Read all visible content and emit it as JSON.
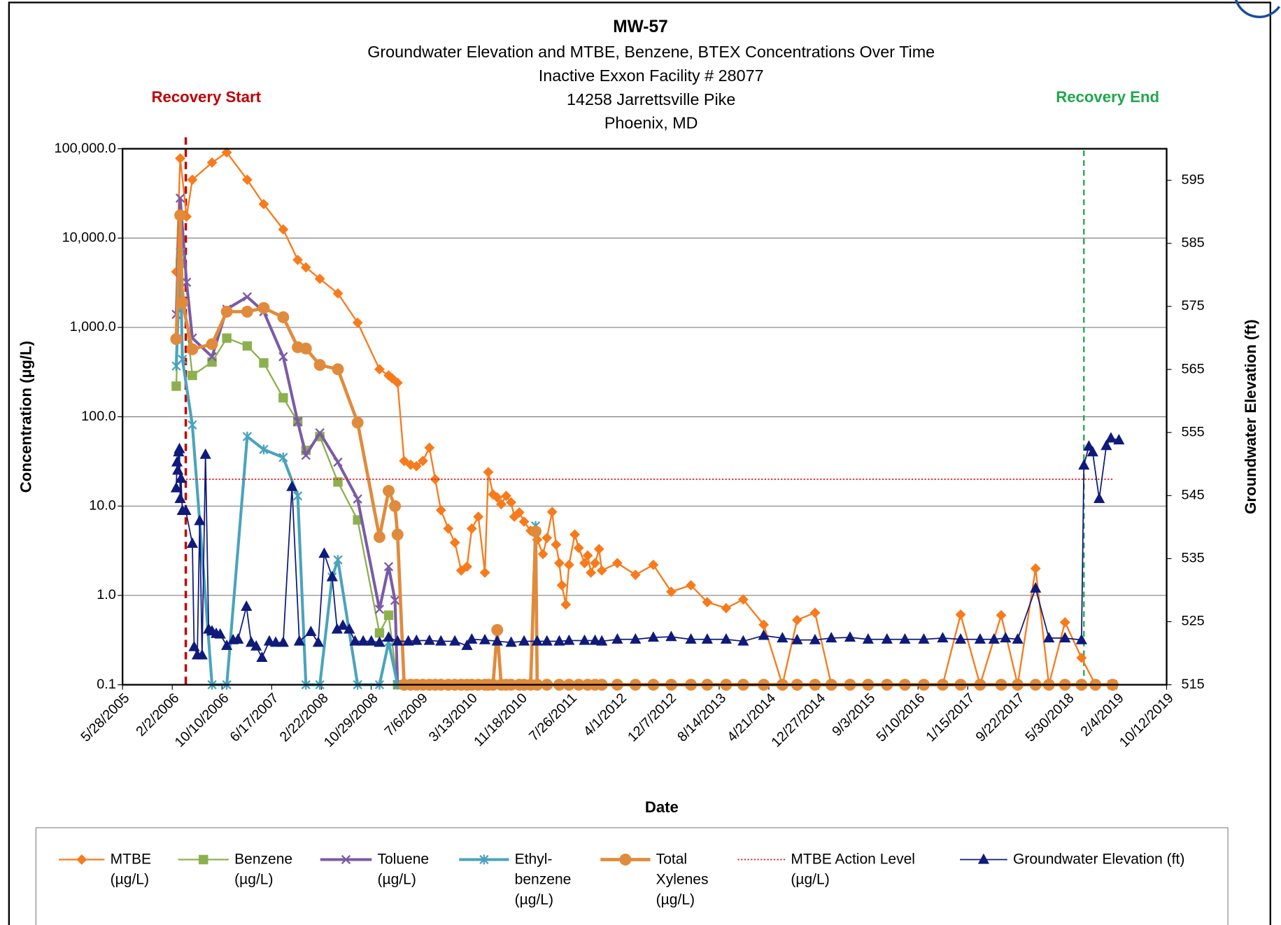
{
  "chart_data": {
    "type": "line",
    "title": "MW-57",
    "subtitle": [
      "Groundwater Elevation and MTBE, Benzene, BTEX Concentrations Over Time",
      "Inactive Exxon Facility # 28077",
      "14258 Jarrettsville Pike",
      "Phoenix, MD"
    ],
    "x_label": "Date",
    "y_label": "Concentration (µg/L)",
    "y2_label": "Groundwater Elevation (ft)",
    "xlim": [
      "5/28/2005",
      "10/12/2019"
    ],
    "xticks": [
      "5/28/2005",
      "2/2/2006",
      "10/10/2006",
      "6/17/2007",
      "2/22/2008",
      "10/29/2008",
      "7/6/2009",
      "3/13/2010",
      "11/18/2010",
      "7/26/2011",
      "4/1/2012",
      "12/7/2012",
      "8/14/2013",
      "4/21/2014",
      "12/27/2014",
      "9/3/2015",
      "5/10/2016",
      "1/15/2017",
      "9/22/2017",
      "5/30/2018",
      "2/4/2019",
      "10/12/2019"
    ],
    "ylim": [
      0.1,
      100000
    ],
    "log_y": true,
    "yticks": [
      0.1,
      {
        "value": 1,
        "label": "1.0"
      },
      {
        "value": 10,
        "label": "10.0"
      },
      {
        "value": 100,
        "label": "100.0"
      },
      {
        "value": 1000,
        "label": "1,000.0"
      },
      {
        "value": 10000,
        "label": "10,000.0"
      },
      {
        "value": 100000,
        "label": "100,000.0"
      }
    ],
    "y2lim": [
      515,
      600
    ],
    "y2ticks": [
      515,
      525,
      535,
      545,
      555,
      565,
      575,
      585,
      595
    ],
    "grid": true,
    "annotations": [
      {
        "text": "Recovery Start",
        "x": "4/11/2006",
        "color": "#c00000"
      },
      {
        "text": "Recovery End",
        "x": "8/22/2018",
        "color": "#1fa84b"
      }
    ],
    "series": [
      {
        "name": "MTBE (µg/L)",
        "color": "#f77b1c",
        "marker": "diamond",
        "width": 2,
        "x": [
          "2/22/2006",
          "3/14/2006",
          "4/15/2006",
          "5/14/2006",
          "8/21/2006",
          "11/3/2006",
          "2/14/2007",
          "5/8/2007",
          "8/14/2007",
          "10/26/2007",
          "12/6/2007",
          "2/14/2008",
          "5/15/2008",
          "8/22/2008",
          "12/10/2008",
          "1/25/2009",
          "2/11/2009",
          "3/11/2009",
          "4/13/2009",
          "5/16/2009",
          "6/14/2009",
          "7/16/2009",
          "8/18/2009",
          "9/16/2009",
          "10/15/2009",
          "11/21/2009",
          "12/24/2009",
          "1/25/2010",
          "2/23/2010",
          "3/19/2010",
          "4/21/2010",
          "5/24/2010",
          "6/10/2010",
          "7/4/2010",
          "7/25/2010",
          "8/14/2010",
          "9/8/2010",
          "10/3/2010",
          "10/19/2010",
          "11/13/2010",
          "12/7/2010",
          "1/9/2011",
          "2/11/2011",
          "3/12/2011",
          "4/1/2011",
          "4/27/2011",
          "5/17/2011",
          "6/2/2011",
          "6/15/2011",
          "7/5/2011",
          "7/21/2011",
          "8/19/2011",
          "9/8/2011",
          "10/7/2011",
          "10/23/2011",
          "11/8/2011",
          "11/29/2011",
          "12/19/2011",
          "1/2/2012",
          "3/20/2012",
          "6/19/2012",
          "9/17/2012",
          "12/16/2012",
          "3/25/2013",
          "6/15/2013",
          "9/18/2013",
          "12/13/2013",
          "3/26/2014",
          "6/28/2014",
          "9/10/2014",
          "12/9/2014",
          "3/1/2015",
          "6/3/2015",
          "9/2/2015",
          "12/6/2015",
          "3/5/2016",
          "6/8/2016",
          "9/11/2016",
          "12/10/2016",
          "3/18/2017",
          "7/2/2017",
          "9/23/2017",
          "12/22/2017",
          "2/27/2018",
          "5/19/2018",
          "8/10/2018",
          "10/19/2018",
          "1/13/2019"
        ],
        "values": [
          4200,
          78000,
          17400,
          45000,
          70000,
          91000,
          45000,
          24000,
          12500,
          5700,
          4700,
          3500,
          2400,
          1130,
          340,
          290,
          270,
          240,
          32,
          29,
          28,
          32,
          45,
          20,
          9,
          5.6,
          3.9,
          1.9,
          2.1,
          5.6,
          7.6,
          1.8,
          24,
          13.5,
          12.5,
          10.5,
          13,
          11,
          7.6,
          8.5,
          6.7,
          5.3,
          4.2,
          2.9,
          4.4,
          8.6,
          3.7,
          2.3,
          1.3,
          0.79,
          2.2,
          4.8,
          3.4,
          2.3,
          2.8,
          1.8,
          2.3,
          3.3,
          1.9,
          2.3,
          1.7,
          2.2,
          1.1,
          1.3,
          0.84,
          0.72,
          0.9,
          0.47,
          0.1,
          0.53,
          0.64,
          0.1,
          0.1,
          0.1,
          0.1,
          0.1,
          0.1,
          0.1,
          0.61,
          0.1,
          0.6,
          0.1,
          2.0,
          0.1,
          0.5,
          0.2,
          0.1,
          0.1
        ]
      },
      {
        "name": "Benzene (µg/L)",
        "color": "#8db04e",
        "marker": "square",
        "width": 2,
        "x": [
          "2/22/2006",
          "3/14/2006",
          "5/14/2006",
          "8/21/2006",
          "11/3/2006",
          "2/14/2007",
          "5/8/2007",
          "8/14/2007",
          "10/26/2007",
          "12/6/2007",
          "2/14/2008",
          "5/15/2008",
          "8/22/2008",
          "12/10/2008",
          "1/25/2009",
          "3/11/2009",
          "6/14/2009",
          "1/13/2019"
        ],
        "values": [
          220,
          5200,
          290,
          410,
          760,
          620,
          400,
          163,
          88,
          42,
          60,
          18.6,
          7,
          0.38,
          0.6,
          0.1,
          0.1,
          0.1
        ]
      },
      {
        "name": "Toluene (µg/L)",
        "color": "#7a5ba6",
        "marker": "x",
        "width": 3.5,
        "x": [
          "2/22/2006",
          "3/14/2006",
          "4/15/2006",
          "5/14/2006",
          "8/21/2006",
          "11/3/2006",
          "2/14/2007",
          "5/8/2007",
          "8/14/2007",
          "10/26/2007",
          "12/6/2007",
          "2/14/2008",
          "5/15/2008",
          "8/22/2008",
          "12/10/2008",
          "1/25/2009",
          "2/26/2009",
          "3/11/2009",
          "6/14/2009",
          "1/13/2019"
        ],
        "values": [
          1400,
          28000,
          3200,
          760,
          470,
          1600,
          2200,
          1500,
          470,
          88,
          37,
          66,
          31,
          12,
          0.7,
          2.1,
          0.88,
          0.1,
          0.1,
          0.1
        ]
      },
      {
        "name": "Ethyl-benzene (µg/L)",
        "color": "#4aa3bd",
        "marker": "asterisk",
        "width": 3.5,
        "x": [
          "2/22/2006",
          "3/14/2006",
          "3/25/2006",
          "5/14/2006",
          "8/21/2006",
          "11/3/2006",
          "2/14/2007",
          "5/8/2007",
          "8/14/2007",
          "10/26/2007",
          "12/6/2007",
          "2/14/2008",
          "4/16/2008",
          "5/15/2008",
          "8/22/2008",
          "12/10/2008",
          "1/25/2009",
          "3/11/2009",
          "6/14/2009",
          "1/9/2011",
          "2/3/2011",
          "2/11/2011",
          "1/13/2019"
        ],
        "values": [
          370,
          6900,
          440,
          81,
          0.1,
          0.1,
          60,
          43,
          35,
          13,
          0.1,
          0.1,
          1.6,
          2.5,
          0.1,
          0.1,
          0.3,
          0.1,
          0.1,
          0.1,
          6,
          0.1,
          0.1
        ]
      },
      {
        "name": "Total Xylenes (µg/L)",
        "color": "#e08b3c",
        "marker": "circle",
        "width": 4,
        "x": [
          "2/22/2006",
          "3/14/2006",
          "3/25/2006",
          "5/14/2006",
          "8/21/2006",
          "11/3/2006",
          "2/14/2007",
          "5/8/2007",
          "8/14/2007",
          "10/26/2007",
          "12/6/2007",
          "2/14/2008",
          "5/15/2008",
          "8/22/2008",
          "12/10/2008",
          "1/25/2009",
          "2/26/2009",
          "3/11/2009",
          "4/13/2009",
          "5/16/2009",
          "6/14/2009",
          "7/16/2009",
          "8/18/2009",
          "9/16/2009",
          "10/15/2009",
          "11/21/2009",
          "12/24/2009",
          "1/25/2010",
          "2/23/2010",
          "3/19/2010",
          "4/21/2010",
          "5/24/2010",
          "6/10/2010",
          "7/4/2010",
          "7/25/2010",
          "8/14/2010",
          "9/8/2010",
          "10/3/2010",
          "11/13/2010",
          "12/7/2010",
          "1/9/2011",
          "2/3/2011",
          "2/11/2011",
          "4/1/2011",
          "6/2/2011",
          "7/21/2011",
          "9/8/2011",
          "10/23/2011",
          "11/29/2011",
          "1/2/2012",
          "3/20/2012",
          "6/19/2012",
          "9/17/2012",
          "12/16/2012",
          "3/25/2013",
          "6/15/2013",
          "9/18/2013",
          "12/13/2013",
          "3/26/2014",
          "6/28/2014",
          "9/10/2014",
          "12/9/2014",
          "3/1/2015",
          "6/3/2015",
          "9/2/2015",
          "12/6/2015",
          "3/5/2016",
          "6/8/2016",
          "9/11/2016",
          "12/10/2016",
          "3/18/2017",
          "7/2/2017",
          "9/23/2017",
          "12/22/2017",
          "2/27/2018",
          "5/19/2018",
          "8/10/2018",
          "10/19/2018",
          "1/13/2019"
        ],
        "values": [
          740,
          18000,
          1900,
          570,
          650,
          1500,
          1500,
          1650,
          1300,
          600,
          580,
          380,
          340,
          86,
          4.5,
          14.8,
          10,
          4.8,
          0.1,
          0.1,
          0.1,
          0.1,
          0.1,
          0.1,
          0.1,
          0.1,
          0.1,
          0.1,
          0.1,
          0.1,
          0.1,
          0.1,
          0.1,
          0.1,
          0.41,
          0.1,
          0.1,
          0.1,
          0.1,
          0.1,
          0.1,
          5.2,
          0.1,
          0.1,
          0.1,
          0.1,
          0.1,
          0.1,
          0.1,
          0.1,
          0.1,
          0.1,
          0.1,
          0.1,
          0.1,
          0.1,
          0.1,
          0.1,
          0.1,
          0.1,
          0.1,
          0.1,
          0.1,
          0.1,
          0.1,
          0.1,
          0.1,
          0.1,
          0.1,
          0.1,
          0.1,
          0.1,
          0.1,
          0.1,
          0.1,
          0.1,
          0.1,
          0.1,
          0.1
        ]
      },
      {
        "name": "MTBE Action Level (µg/L)",
        "color": "#e31a1c",
        "marker": "none",
        "width": 1.5,
        "dash": "dotted",
        "x": [
          "2/22/2006",
          "1/13/2019"
        ],
        "values": [
          20,
          20
        ]
      },
      {
        "name": "Groundwater Elevation (ft)",
        "color": "#0f1a7a",
        "marker": "triangle",
        "width": 1.5,
        "axis": "y2",
        "x": [
          "2/22/2006",
          "2/26/2006",
          "3/2/2006",
          "3/6/2006",
          "3/10/2006",
          "3/14/2006",
          "3/18/2006",
          "3/25/2006",
          "4/11/2006",
          "5/14/2006",
          "5/23/2006",
          "6/8/2006",
          "6/20/2006",
          "7/2/2006",
          "7/19/2006",
          "8/4/2006",
          "8/21/2006",
          "9/11/2006",
          "10/1/2006",
          "11/3/2006",
          "12/5/2006",
          "12/30/2006",
          "2/10/2007",
          "3/6/2007",
          "3/31/2007",
          "4/29/2007",
          "6/5/2007",
          "7/7/2007",
          "8/14/2007",
          "9/27/2007",
          "11/3/2007",
          "12/31/2007",
          "2/6/2008",
          "3/7/2008",
          "4/16/2008",
          "5/11/2008",
          "6/9/2008",
          "7/11/2008",
          "8/9/2008",
          "9/19/2008",
          "10/30/2008",
          "12/10/2008",
          "1/25/2009",
          "3/11/2009",
          "5/4/2009",
          "6/14/2009",
          "8/18/2009",
          "10/15/2009",
          "12/24/2009",
          "2/23/2010",
          "3/19/2010",
          "5/24/2010",
          "7/25/2010",
          "10/3/2010",
          "12/7/2010",
          "2/11/2011",
          "4/1/2011",
          "6/2/2011",
          "7/21/2011",
          "10/7/2011",
          "11/29/2011",
          "1/2/2012",
          "3/20/2012",
          "6/19/2012",
          "9/17/2012",
          "12/16/2012",
          "3/25/2013",
          "6/15/2013",
          "9/18/2013",
          "12/13/2013",
          "3/26/2014",
          "6/28/2014",
          "9/10/2014",
          "12/9/2014",
          "3/1/2015",
          "6/3/2015",
          "9/2/2015",
          "12/6/2015",
          "3/5/2016",
          "6/8/2016",
          "9/11/2016",
          "12/10/2016",
          "3/18/2017",
          "5/27/2017",
          "7/24/2017",
          "9/23/2017",
          "12/22/2017",
          "2/27/2018",
          "5/19/2018",
          "8/10/2018",
          "8/22/2018",
          "9/16/2018",
          "10/5/2018",
          "11/7/2018",
          "12/13/2018",
          "1/5/2019",
          "2/14/2019"
        ],
        "values": [
          546.2,
          550.3,
          549.0,
          551.9,
          552.4,
          544.5,
          547.7,
          542.6,
          542.6,
          537.4,
          521.0,
          519.7,
          541.0,
          519.7,
          551.5,
          523.8,
          523.5,
          523.1,
          523.0,
          521.2,
          522.1,
          522.2,
          527.4,
          521.7,
          521.1,
          519.3,
          521.9,
          521.7,
          521.7,
          546.4,
          521.9,
          523.4,
          521.7,
          535.8,
          532.1,
          523.8,
          524.4,
          523.8,
          521.9,
          521.9,
          521.9,
          521.7,
          522.5,
          521.9,
          521.9,
          522.0,
          522.0,
          521.9,
          521.9,
          521.2,
          522.2,
          522.1,
          521.9,
          521.7,
          521.9,
          521.9,
          521.9,
          521.9,
          522.0,
          522.0,
          522.0,
          521.9,
          522.2,
          522.2,
          522.5,
          522.6,
          522.2,
          522.2,
          522.2,
          521.9,
          522.8,
          522.4,
          522.1,
          522.1,
          522.4,
          522.5,
          522.2,
          522.2,
          522.2,
          522.2,
          522.4,
          522.2,
          522.2,
          522.2,
          522.4,
          522.2,
          530.3,
          522.4,
          522.4,
          522.1,
          549.8,
          552.8,
          551.9,
          544.5,
          552.9,
          554.1,
          553.8
        ]
      }
    ]
  }
}
